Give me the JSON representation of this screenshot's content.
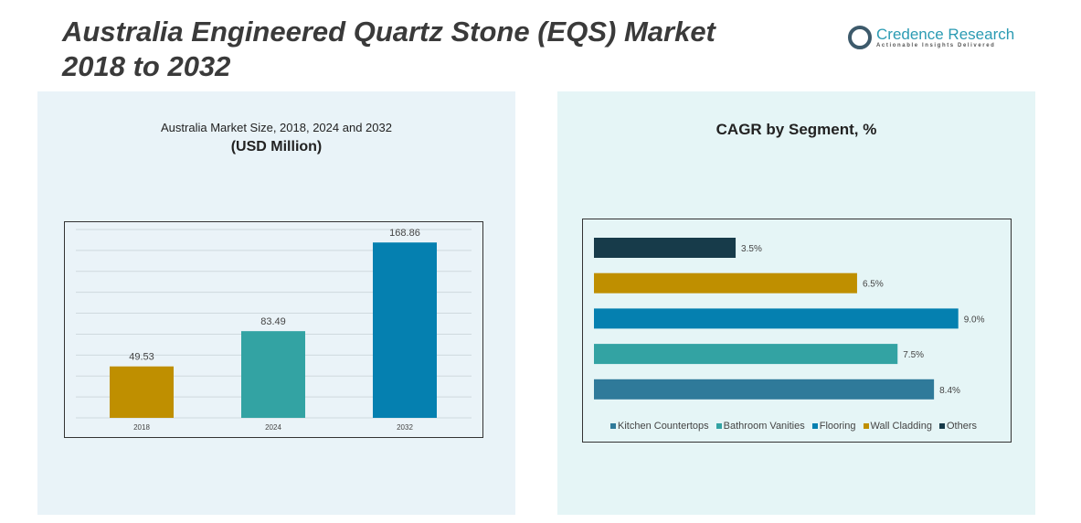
{
  "title_line1": "Australia Engineered Quartz Stone (EQS) Market",
  "title_line2": "2018 to 2032",
  "logo": {
    "name": "Credence Research",
    "tagline": "Actionable Insights Delivered"
  },
  "chart_data": [
    {
      "type": "bar",
      "title": "Australia Market Size, 2018, 2024 and 2032",
      "subtitle": "(USD Million)",
      "categories": [
        "2018",
        "2024",
        "2032"
      ],
      "values": [
        49.53,
        83.49,
        168.86
      ],
      "labels": [
        "49.53",
        "83.49",
        "168.86"
      ],
      "colors": [
        "#bf8f00",
        "#33a3a3",
        "#0580b0"
      ],
      "ylim": [
        0,
        185
      ],
      "grid": true
    },
    {
      "type": "bar",
      "orientation": "horizontal",
      "title": "CAGR by Segment, %",
      "categories": [
        "Others",
        "Wall Cladding",
        "Flooring",
        "Bathroom Vanities",
        "Kitchen Countertops"
      ],
      "values": [
        3.5,
        6.5,
        9.0,
        7.5,
        8.4
      ],
      "labels": [
        "3.5%",
        "6.5%",
        "9.0%",
        "7.5%",
        "8.4%"
      ],
      "colors": [
        "#173b4a",
        "#bf8f00",
        "#0580b0",
        "#33a3a3",
        "#2f7a9a"
      ],
      "xlim": [
        0,
        10
      ],
      "legend": [
        {
          "label": "Kitchen Countertops",
          "color": "#2f7a9a"
        },
        {
          "label": "Bathroom Vanities",
          "color": "#33a3a3"
        },
        {
          "label": "Flooring",
          "color": "#0580b0"
        },
        {
          "label": "Wall Cladding",
          "color": "#bf8f00"
        },
        {
          "label": "Others",
          "color": "#173b4a"
        }
      ],
      "legend_position": "bottom"
    }
  ]
}
